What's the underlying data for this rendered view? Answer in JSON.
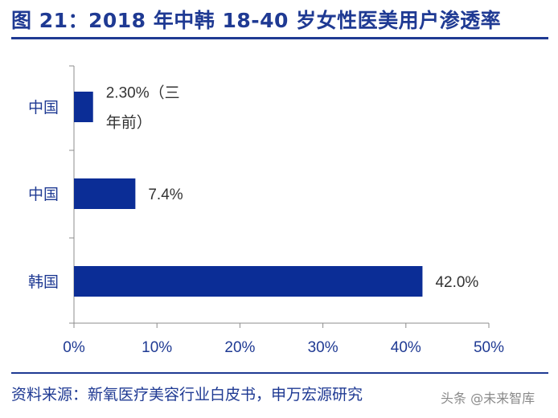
{
  "title": "图 21：2018 年中韩 18-40 岁女性医美用户渗透率",
  "source": "资料来源：新氧医疗美容行业白皮书，申万宏源研究",
  "watermark": "头条 @未来智库",
  "colors": {
    "accent": "#1f3a93",
    "bar": "#0b2d96",
    "axis": "#8c8c8c",
    "label": "#333333"
  },
  "chart_data": {
    "type": "bar",
    "orientation": "horizontal",
    "categories": [
      "中国",
      "中国",
      "韩国"
    ],
    "values": [
      2.3,
      7.4,
      42.0
    ],
    "data_labels": [
      [
        "2.30%（三",
        "年前）"
      ],
      [
        "7.4%"
      ],
      [
        "42.0%"
      ]
    ],
    "xlim": [
      0,
      50
    ],
    "xticks": [
      0,
      10,
      20,
      30,
      40,
      50
    ],
    "xtick_labels": [
      "0%",
      "10%",
      "20%",
      "30%",
      "40%",
      "50%"
    ],
    "grid": false,
    "xlabel": "",
    "ylabel": ""
  }
}
